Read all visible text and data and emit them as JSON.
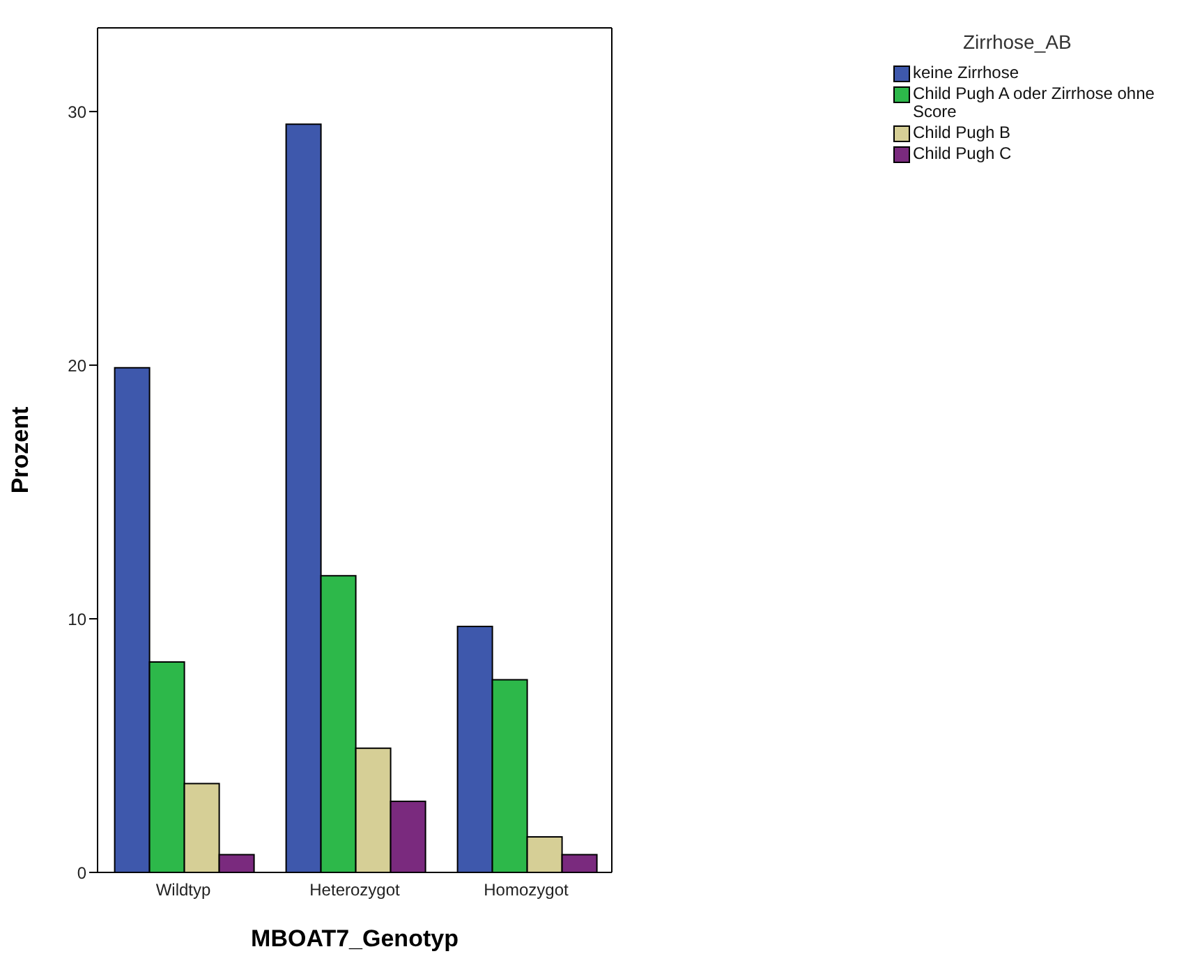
{
  "chart_data": {
    "type": "bar",
    "xlabel": "MBOAT7_Genotyp",
    "ylabel": "Prozent",
    "legend_title": "Zirrhose_AB",
    "legend": "top right",
    "categories": [
      "Wildtyp",
      "Heterozygot",
      "Homozygot"
    ],
    "series": [
      {
        "name": "keine Zirrhose",
        "color": "#3e58ac",
        "values": [
          19.9,
          29.5,
          9.7
        ]
      },
      {
        "name": "Child Pugh A oder Zirrhose ohne Score",
        "color": "#2db84a",
        "values": [
          8.3,
          11.7,
          7.6
        ]
      },
      {
        "name": "Child Pugh B",
        "color": "#d6cf96",
        "values": [
          3.5,
          4.9,
          1.4
        ]
      },
      {
        "name": "Child Pugh C",
        "color": "#7a2a7e",
        "values": [
          0.7,
          2.8,
          0.7
        ]
      }
    ],
    "ylim": [
      0,
      33.3
    ],
    "yticks": [
      0,
      10,
      20,
      30
    ],
    "grid": false
  }
}
